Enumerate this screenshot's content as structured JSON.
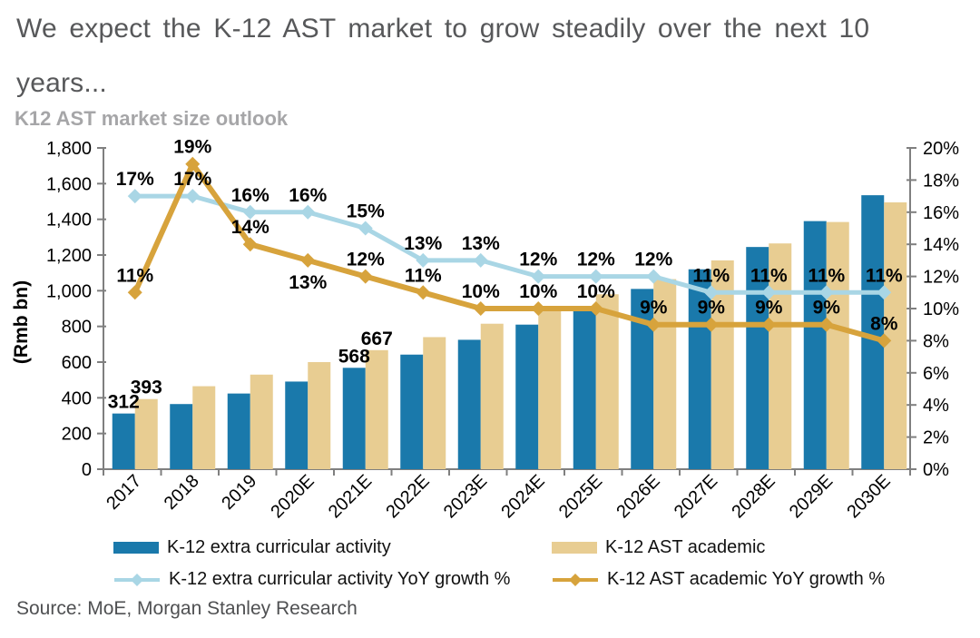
{
  "page": {
    "headline": "We expect the K-12 AST market to grow steadily over the next 10 years...",
    "source": "Source: MoE, Morgan Stanley Research"
  },
  "colors": {
    "bar_blue": "#1a79ab",
    "bar_tan": "#e8cd92",
    "line_lightblue": "#a9d6e5",
    "line_gold": "#d7a33c",
    "axis_line": "#7f7f7f",
    "headline_gray": "#57585a",
    "chart_title_gray": "#a6a6a8"
  },
  "chart_data": {
    "type": "bar",
    "subtype": "combo bar + line, dual axis",
    "title": "K12 AST market size outlook",
    "categories": [
      "2017",
      "2018",
      "2019",
      "2020E",
      "2021E",
      "2022E",
      "2023E",
      "2024E",
      "2025E",
      "2026E",
      "2027E",
      "2028E",
      "2029E",
      "2030E"
    ],
    "left_axis": {
      "label": "(Rmb bn)",
      "min": 0,
      "max": 1800,
      "step": 200,
      "tick_labels": [
        "0",
        "200",
        "400",
        "600",
        "800",
        "1,000",
        "1,200",
        "1,400",
        "1,600",
        "1,800"
      ]
    },
    "right_axis": {
      "min": 0,
      "max": 20,
      "step": 2,
      "tick_labels": [
        "0%",
        "2%",
        "4%",
        "6%",
        "8%",
        "10%",
        "12%",
        "14%",
        "16%",
        "18%",
        "20%"
      ]
    },
    "grid": "off",
    "legend_position": "bottom",
    "series": [
      {
        "name": "K-12 extra curricular activity",
        "kind": "bar",
        "axis": "left",
        "color": "#1a79ab",
        "values": [
          312,
          365,
          424,
          491,
          568,
          642,
          725,
          810,
          905,
          1010,
          1120,
          1245,
          1390,
          1535
        ],
        "point_labels": {
          "0": "312",
          "4": "568"
        }
      },
      {
        "name": "K-12 AST academic",
        "kind": "bar",
        "axis": "left",
        "color": "#e8cd92",
        "values": [
          393,
          465,
          530,
          600,
          667,
          740,
          815,
          890,
          980,
          1065,
          1170,
          1265,
          1385,
          1495
        ],
        "point_labels": {
          "0": "393",
          "4": "667"
        }
      },
      {
        "name": "K-12 extra curricular activity YoY growth %",
        "kind": "line",
        "axis": "right",
        "color": "#a9d6e5",
        "values": [
          17,
          17,
          16,
          16,
          15,
          13,
          13,
          12,
          12,
          12,
          11,
          11,
          11,
          11
        ],
        "point_labels": "percent-all"
      },
      {
        "name": "K-12 AST academic YoY growth %",
        "kind": "line",
        "axis": "right",
        "color": "#d7a33c",
        "values": [
          11,
          19,
          14,
          13,
          12,
          11,
          10,
          10,
          10,
          9,
          9,
          9,
          9,
          8
        ],
        "point_labels": "percent-all"
      }
    ]
  }
}
